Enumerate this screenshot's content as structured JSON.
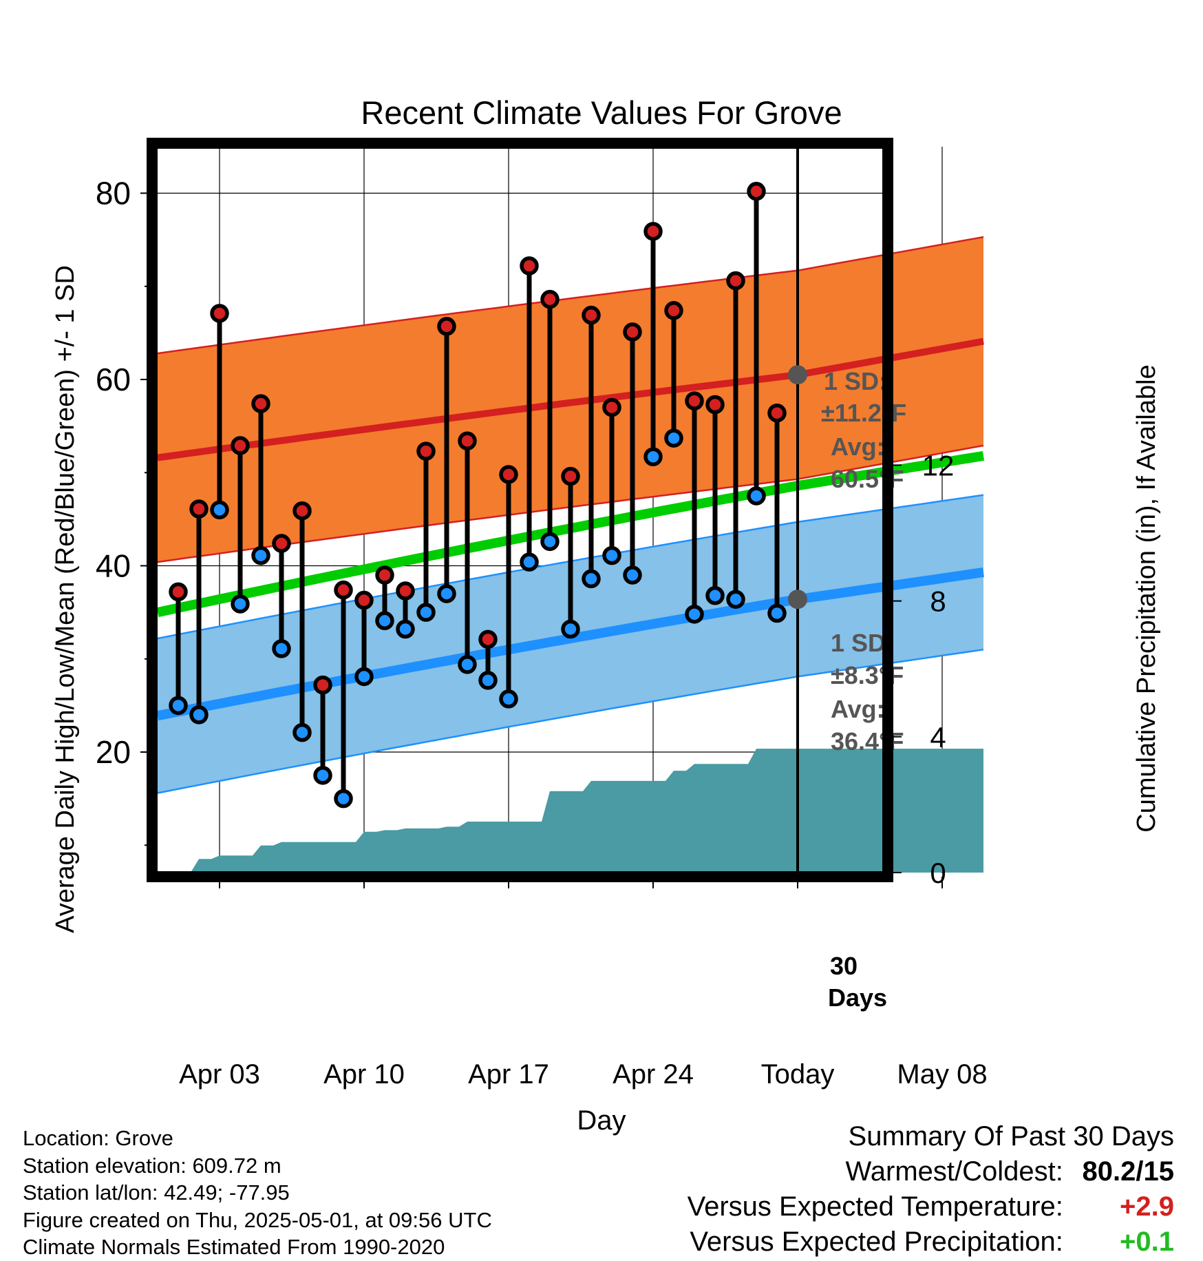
{
  "title": "Recent Climate Values For Grove",
  "chart_data": {
    "type": "line",
    "title": "Recent Climate Values For Grove",
    "xlabel": "Day",
    "ylabel_left": "Average Daily High/Low/Mean (Red/Blue/Green) +/- 1 SD",
    "ylabel_right": "Cumulative Precipitation (in), If Available",
    "x_ticks": [
      "Apr 03",
      "Apr 10",
      "Apr 17",
      "Apr 24",
      "Today",
      "May 08"
    ],
    "x_range": [
      "Mar 31",
      "May 10"
    ],
    "ylim_left": [
      8,
      86.5
    ],
    "y_ticks_left": [
      "20",
      "40",
      "60",
      "80"
    ],
    "ylim_right": [
      -0.1,
      18.5
    ],
    "y_ticks_right": [
      "0",
      "4",
      "8",
      "12"
    ],
    "grid": true,
    "days": [
      "Apr 01",
      "Apr 02",
      "Apr 03",
      "Apr 04",
      "Apr 05",
      "Apr 06",
      "Apr 07",
      "Apr 08",
      "Apr 09",
      "Apr 10",
      "Apr 11",
      "Apr 12",
      "Apr 13",
      "Apr 14",
      "Apr 15",
      "Apr 16",
      "Apr 17",
      "Apr 18",
      "Apr 19",
      "Apr 20",
      "Apr 21",
      "Apr 22",
      "Apr 23",
      "Apr 24",
      "Apr 25",
      "Apr 26",
      "Apr 27",
      "Apr 28",
      "Apr 29",
      "Apr 30"
    ],
    "daily_high": [
      37.2,
      46.1,
      67.1,
      52.9,
      57.4,
      42.4,
      45.9,
      27.2,
      37.4,
      36.3,
      39.0,
      37.3,
      52.3,
      65.7,
      53.4,
      32.1,
      49.8,
      72.2,
      68.6,
      49.6,
      66.9,
      57.0,
      65.1,
      75.9,
      67.4,
      57.7,
      57.3,
      70.6,
      80.2,
      56.4
    ],
    "daily_low": [
      25.0,
      24.0,
      46.0,
      35.9,
      41.1,
      31.1,
      22.1,
      17.5,
      15.0,
      28.1,
      34.1,
      33.2,
      35.0,
      37.0,
      29.4,
      27.7,
      25.7,
      40.4,
      42.6,
      33.2,
      38.6,
      41.1,
      39.0,
      51.7,
      53.7,
      34.8,
      36.8,
      36.4,
      47.5,
      34.9
    ],
    "normal_high": {
      "start": 51.6,
      "today": 60.5,
      "end": 64.1
    },
    "normal_high_sd": 11.2,
    "normal_low": {
      "start": 23.9,
      "today": 36.4,
      "end": 39.3
    },
    "normal_low_sd": 8.3,
    "normal_mean": {
      "start": 35.0,
      "today": 48.6,
      "end": 51.8
    },
    "cumulative_precip": {
      "days": [
        "Apr 01",
        "Apr 02",
        "Apr 03",
        "Apr 04",
        "Apr 05",
        "Apr 06",
        "Apr 07",
        "Apr 08",
        "Apr 09",
        "Apr 10",
        "Apr 11",
        "Apr 12",
        "Apr 13",
        "Apr 14",
        "Apr 15",
        "Apr 16",
        "Apr 17",
        "Apr 18",
        "Apr 19",
        "Apr 20",
        "Apr 21",
        "Apr 22",
        "Apr 23",
        "Apr 24",
        "Apr 25",
        "Apr 26",
        "Apr 27",
        "Apr 28",
        "Apr 29",
        "Apr 30",
        "May 10"
      ],
      "values": [
        0.0,
        0.4,
        0.5,
        0.5,
        0.8,
        0.9,
        0.9,
        0.9,
        0.9,
        1.2,
        1.25,
        1.3,
        1.3,
        1.35,
        1.5,
        1.5,
        1.5,
        1.5,
        2.4,
        2.4,
        2.7,
        2.7,
        2.7,
        2.7,
        3.0,
        3.2,
        3.2,
        3.2,
        3.65,
        3.65,
        3.65
      ]
    },
    "annotations": {
      "high_sd_label": "1 SD:",
      "high_sd_value": "±11.2°F",
      "high_avg_label": "Avg:",
      "high_avg_value": "60.5°F",
      "low_sd_label": "1 SD:",
      "low_sd_value": "±8.3°F",
      "low_avg_label": "Avg:",
      "low_avg_value": "36.4°F",
      "window_label_1": "30",
      "window_label_2": "Days"
    },
    "colors": {
      "high_band": "#f47c2e",
      "high_line": "#d42020",
      "low_band": "#85c1e8",
      "low_line": "#1e90ff",
      "mean_line": "#00cc00",
      "precip": "#4a9ba3",
      "high_marker": "#d42020",
      "low_marker": "#1e90ff"
    }
  },
  "footer": {
    "location": "Location: Grove",
    "elevation": "Station elevation: 609.72 m",
    "latlon": "Station lat/lon: 42.49; -77.95",
    "created": "Figure created on Thu, 2025-05-01, at 09:56 UTC",
    "normals": "Climate Normals Estimated From 1990-2020"
  },
  "summary": {
    "heading": "Summary Of Past 30 Days",
    "warm_cold_label": "Warmest/Coldest:",
    "warm_cold_value": "80.2/15",
    "temp_label": "Versus Expected Temperature:",
    "temp_value": "+2.9",
    "precip_label": "Versus Expected Precipitation:",
    "precip_value": "+0.1",
    "temp_color": "#d42020",
    "precip_color": "#22bb22"
  }
}
